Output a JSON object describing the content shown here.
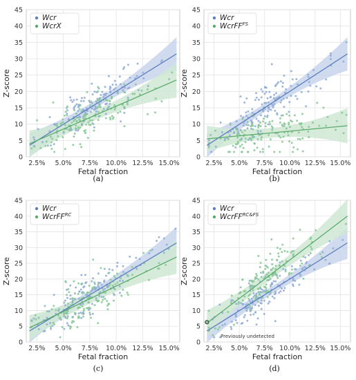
{
  "colors": {
    "blue": "#5b7fbd",
    "green": "#5aaa6b",
    "blue_band": "#c9d5ec",
    "green_band": "#cfe8d3",
    "blue_point": "#8eaad6",
    "green_point": "#86c795",
    "grid": "#e3e3e3",
    "frame": "#bdbdbd"
  },
  "chart_data": [
    {
      "type": "scatter",
      "panel": "(a)",
      "xlabel": "Fetal fraction",
      "ylabel": "Z-score",
      "xlim": [
        0.015,
        0.16
      ],
      "ylim": [
        0,
        45
      ],
      "x_ticks": [
        0.025,
        0.05,
        0.075,
        0.1,
        0.125,
        0.15
      ],
      "x_tick_labels": [
        "2.5%",
        "5.0%",
        "7.5%",
        "10.0%",
        "12.5%",
        "15.0%"
      ],
      "y_ticks": [
        0,
        5,
        10,
        15,
        20,
        25,
        30,
        35,
        40,
        45
      ],
      "y_tick_labels": [
        "0",
        "5",
        "10",
        "15",
        "20",
        "25",
        "30",
        "35",
        "40",
        "45"
      ],
      "grid": true,
      "legend_position": "top-left",
      "series": [
        {
          "name": "Wcr",
          "name_sup": "",
          "color_key": "blue",
          "fit": [
            [
              0.018,
              3.5
            ],
            [
              0.157,
              31.5
            ]
          ]
        },
        {
          "name": "WcrX",
          "name_sup": "",
          "color_key": "green",
          "fit": [
            [
              0.018,
              4.0
            ],
            [
              0.157,
              23.5
            ]
          ]
        }
      ],
      "annotation": ""
    },
    {
      "type": "scatter",
      "panel": "(b)",
      "xlabel": "Fetal fraction",
      "ylabel": "Z-score",
      "xlim": [
        0.015,
        0.16
      ],
      "ylim": [
        0,
        45
      ],
      "x_ticks": [
        0.025,
        0.05,
        0.075,
        0.1,
        0.125,
        0.15
      ],
      "x_tick_labels": [
        "2.5%",
        "5.0%",
        "7.5%",
        "10.0%",
        "12.5%",
        "15.0%"
      ],
      "y_ticks": [
        0,
        5,
        10,
        15,
        20,
        25,
        30,
        35,
        40,
        45
      ],
      "y_tick_labels": [
        "0",
        "5",
        "10",
        "15",
        "20",
        "25",
        "30",
        "35",
        "40",
        "45"
      ],
      "grid": true,
      "legend_position": "top-left",
      "series": [
        {
          "name": "Wcr",
          "name_sup": "",
          "color_key": "blue",
          "fit": [
            [
              0.018,
              3.5
            ],
            [
              0.157,
              31.5
            ]
          ]
        },
        {
          "name": "WcrFF",
          "name_sup": "FS",
          "color_key": "green",
          "fit": [
            [
              0.018,
              5.5
            ],
            [
              0.157,
              9.5
            ]
          ]
        }
      ],
      "annotation": ""
    },
    {
      "type": "scatter",
      "panel": "(c)",
      "xlabel": "Fetal fraction",
      "ylabel": "Z-score",
      "xlim": [
        0.015,
        0.16
      ],
      "ylim": [
        0,
        45
      ],
      "x_ticks": [
        0.025,
        0.05,
        0.075,
        0.1,
        0.125,
        0.15
      ],
      "x_tick_labels": [
        "2.5%",
        "5.0%",
        "7.5%",
        "10.0%",
        "12.5%",
        "15.0%"
      ],
      "y_ticks": [
        0,
        5,
        10,
        15,
        20,
        25,
        30,
        35,
        40,
        45
      ],
      "y_tick_labels": [
        "0",
        "5",
        "10",
        "15",
        "20",
        "25",
        "30",
        "35",
        "40",
        "45"
      ],
      "grid": true,
      "legend_position": "top-left",
      "series": [
        {
          "name": "Wcr",
          "name_sup": "",
          "color_key": "blue",
          "fit": [
            [
              0.018,
              3.5
            ],
            [
              0.157,
              31.5
            ]
          ]
        },
        {
          "name": "WcrFF",
          "name_sup": "RC",
          "color_key": "green",
          "fit": [
            [
              0.018,
              4.5
            ],
            [
              0.157,
              27.0
            ]
          ]
        }
      ],
      "annotation": ""
    },
    {
      "type": "scatter",
      "panel": "(d)",
      "xlabel": "Fetal fraction",
      "ylabel": "Z-score",
      "xlim": [
        0.015,
        0.16
      ],
      "ylim": [
        0,
        45
      ],
      "x_ticks": [
        0.025,
        0.05,
        0.075,
        0.1,
        0.125,
        0.15
      ],
      "x_tick_labels": [
        "2.5%",
        "5.0%",
        "7.5%",
        "10.0%",
        "12.5%",
        "15.0%"
      ],
      "y_ticks": [
        0,
        5,
        10,
        15,
        20,
        25,
        30,
        35,
        40,
        45
      ],
      "y_tick_labels": [
        "0",
        "5",
        "10",
        "15",
        "20",
        "25",
        "30",
        "35",
        "40",
        "45"
      ],
      "grid": true,
      "legend_position": "top-left",
      "series": [
        {
          "name": "Wcr",
          "name_sup": "",
          "color_key": "blue",
          "fit": [
            [
              0.018,
              3.5
            ],
            [
              0.157,
              31.5
            ]
          ]
        },
        {
          "name": "WcrFF",
          "name_sup": "RC&FS",
          "color_key": "green",
          "fit": [
            [
              0.018,
              6.0
            ],
            [
              0.157,
              40.0
            ]
          ]
        }
      ],
      "annotation": "Previously undetected",
      "highlight_point": [
        0.018,
        6.3
      ]
    }
  ]
}
